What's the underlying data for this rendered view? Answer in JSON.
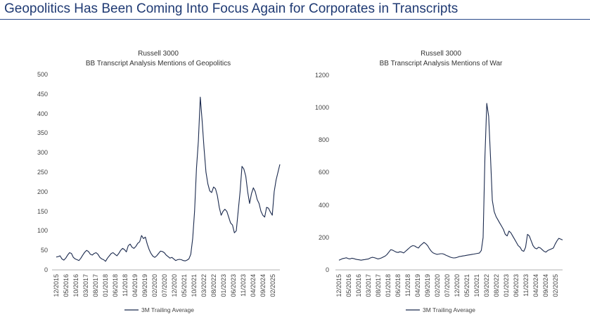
{
  "page_title": "Geopolitics Has Been Coming Into Focus Again for Corporates in Transcripts",
  "colors": {
    "title": "#1f3a73",
    "series": "#1b2a4e",
    "axis": "#999999"
  },
  "chart_data": [
    {
      "type": "line",
      "title": "Russell 3000",
      "subtitle": "BB Transcript Analysis Mentions of Geopolitics",
      "ylim": [
        0,
        500
      ],
      "yticks": [
        "0",
        "50",
        "100",
        "150",
        "200",
        "250",
        "300",
        "350",
        "400",
        "450",
        "500"
      ],
      "grid": false,
      "legend": "bottom",
      "x_tick_labels": [
        "12/2015",
        "05/2016",
        "10/2016",
        "03/2017",
        "08/2017",
        "01/2018",
        "06/2018",
        "11/2018",
        "04/2019",
        "09/2019",
        "02/2020",
        "07/2020",
        "12/2020",
        "05/2021",
        "10/2021",
        "03/2022",
        "08/2022",
        "01/2023",
        "06/2023",
        "11/2023",
        "04/2024",
        "09/2024",
        "02/2025"
      ],
      "series": [
        {
          "name": "3M Trailing Average",
          "x_start": "12/2015",
          "x_end": "08/2025",
          "values": [
            33,
            34,
            36,
            28,
            25,
            30,
            38,
            44,
            42,
            32,
            28,
            26,
            24,
            30,
            38,
            45,
            50,
            47,
            40,
            38,
            42,
            44,
            40,
            32,
            28,
            26,
            22,
            30,
            36,
            42,
            44,
            40,
            36,
            42,
            50,
            55,
            52,
            46,
            62,
            66,
            58,
            55,
            60,
            68,
            72,
            88,
            80,
            84,
            66,
            52,
            42,
            35,
            32,
            36,
            42,
            48,
            47,
            44,
            38,
            34,
            30,
            32,
            28,
            24,
            26,
            27,
            26,
            24,
            23,
            25,
            28,
            40,
            80,
            150,
            260,
            330,
            442,
            380,
            310,
            250,
            220,
            202,
            198,
            212,
            208,
            190,
            160,
            140,
            150,
            155,
            150,
            135,
            120,
            115,
            95,
            100,
            150,
            200,
            265,
            258,
            240,
            200,
            170,
            195,
            210,
            200,
            180,
            170,
            150,
            140,
            135,
            160,
            158,
            148,
            140,
            200,
            230,
            250,
            270
          ]
        }
      ]
    },
    {
      "type": "line",
      "title": "Russell 3000",
      "subtitle": "BB Transcript Analysis Mentions of War",
      "ylim": [
        0,
        1200
      ],
      "yticks": [
        "0",
        "200",
        "400",
        "600",
        "800",
        "1000",
        "1200"
      ],
      "grid": false,
      "legend": "bottom",
      "x_tick_labels": [
        "12/2015",
        "05/2016",
        "10/2016",
        "03/2017",
        "08/2017",
        "01/2018",
        "06/2018",
        "11/2018",
        "04/2019",
        "09/2019",
        "02/2020",
        "07/2020",
        "12/2020",
        "05/2021",
        "10/2021",
        "03/2022",
        "08/2022",
        "01/2023",
        "06/2023",
        "11/2023",
        "04/2024",
        "09/2024",
        "02/2025"
      ],
      "series": [
        {
          "name": "3M Trailing Average",
          "x_start": "12/2015",
          "x_end": "08/2025",
          "values": [
            60,
            65,
            70,
            72,
            75,
            70,
            68,
            72,
            70,
            66,
            64,
            62,
            60,
            62,
            64,
            66,
            68,
            74,
            78,
            76,
            72,
            68,
            70,
            74,
            80,
            85,
            95,
            110,
            125,
            122,
            116,
            110,
            108,
            112,
            110,
            105,
            115,
            125,
            135,
            145,
            150,
            148,
            140,
            135,
            150,
            160,
            170,
            162,
            150,
            130,
            115,
            105,
            100,
            96,
            98,
            100,
            100,
            96,
            90,
            85,
            80,
            76,
            74,
            75,
            78,
            82,
            84,
            86,
            88,
            90,
            92,
            94,
            96,
            98,
            100,
            102,
            104,
            120,
            200,
            700,
            1030,
            950,
            700,
            430,
            360,
            330,
            310,
            290,
            270,
            250,
            220,
            210,
            240,
            230,
            210,
            190,
            170,
            150,
            140,
            120,
            115,
            140,
            220,
            210,
            180,
            150,
            135,
            130,
            140,
            135,
            125,
            115,
            110,
            120,
            125,
            130,
            135,
            160,
            180,
            195,
            190,
            185
          ]
        }
      ]
    }
  ]
}
